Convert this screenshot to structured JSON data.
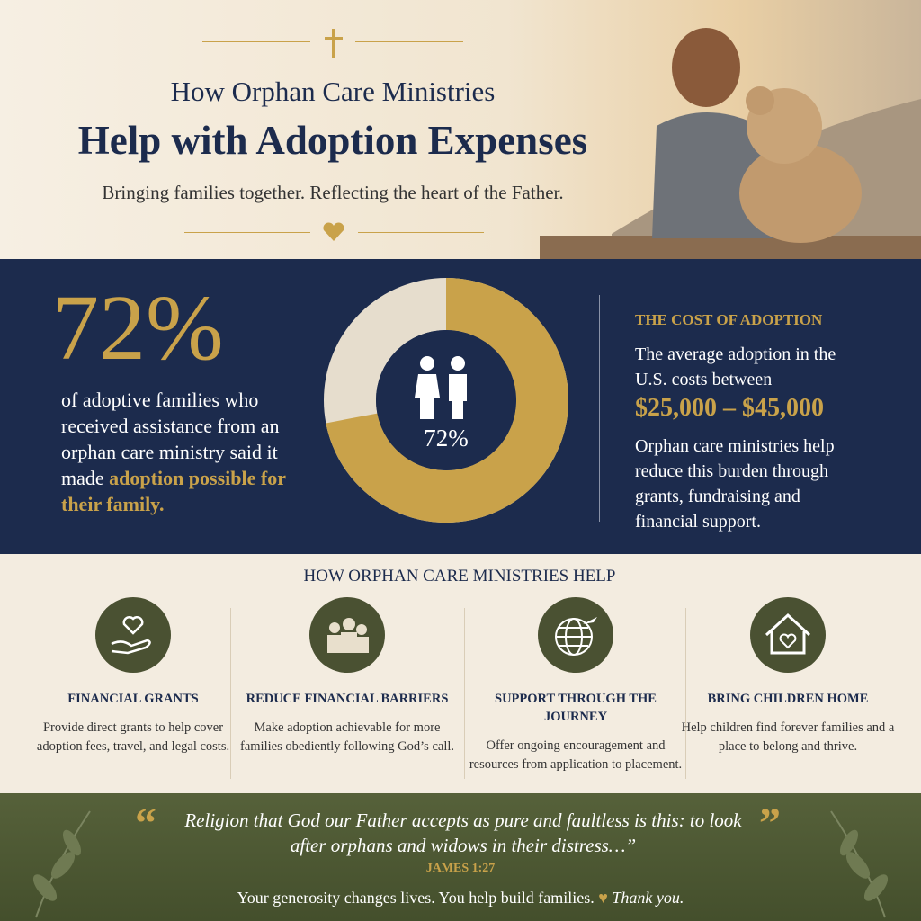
{
  "header": {
    "title_line1": "How Orphan Care Ministries",
    "title_line2": "Help with Adoption Expenses",
    "subtitle": "Bringing families together. Reflecting the heart of the Father."
  },
  "stat": {
    "value": 72,
    "label": "72%",
    "text": "of adoptive families who received assistance from an orphan care ministry said it made",
    "highlight": "adoption possible for their family."
  },
  "cost": {
    "heading": "THE COST OF ADOPTION",
    "intro": "The average adoption in the U.S. costs between",
    "range": "$25,000 – $45,000",
    "body": "Orphan care ministries help reduce this burden through grants, fundraising and financial support."
  },
  "help": {
    "heading": "HOW ORPHAN CARE MINISTRIES HELP",
    "items": [
      {
        "title": "FINANCIAL GRANTS",
        "text": "Provide direct grants to help cover adoption fees, travel, and legal costs."
      },
      {
        "title": "REDUCE FINANCIAL BARRIERS",
        "text": "Make adoption achievable for more families obediently following God’s call."
      },
      {
        "title": "SUPPORT THROUGH THE JOURNEY",
        "text": "Offer ongoing encouragement and resources from application to placement."
      },
      {
        "title": "BRING CHILDREN HOME",
        "text": "Help children find forever families and a place to belong and thrive."
      }
    ]
  },
  "quote": {
    "text": "Religion that God our Father accepts as pure and faultless is this: to look after orphans and widows in their distress…”",
    "reference": "JAMES 1:27",
    "closing": "Your generosity changes lives. You help build families.",
    "thanks": "Thank you."
  }
}
